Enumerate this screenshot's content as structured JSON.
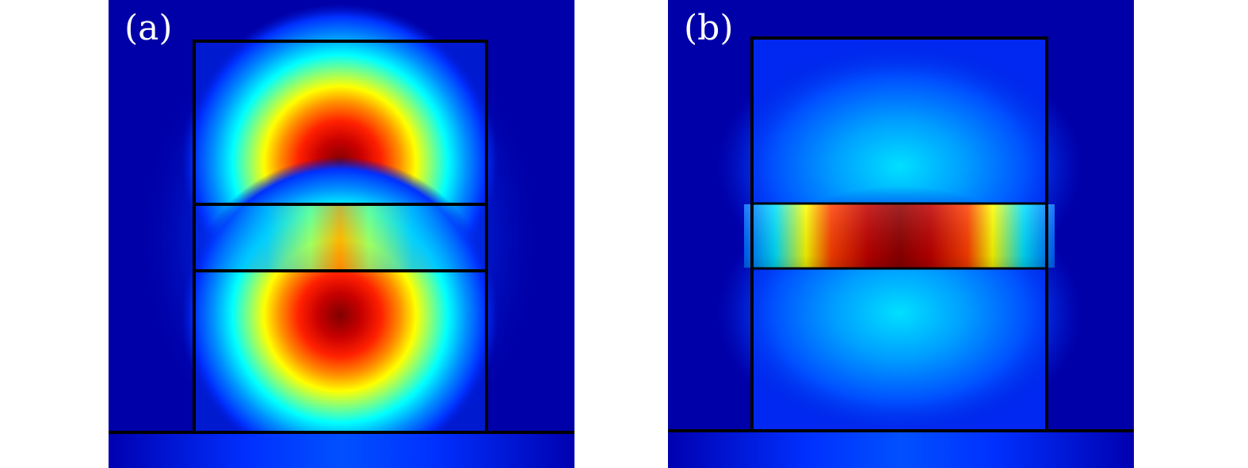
{
  "figure": {
    "panels": [
      {
        "id": "a",
        "label": "(a)"
      },
      {
        "id": "b",
        "label": "(b)"
      }
    ]
  },
  "colors": {
    "background_field": "#0000aa",
    "boundary_lines": "#000000",
    "label_text": "#ffffff",
    "page_background": "#ffffff"
  }
}
